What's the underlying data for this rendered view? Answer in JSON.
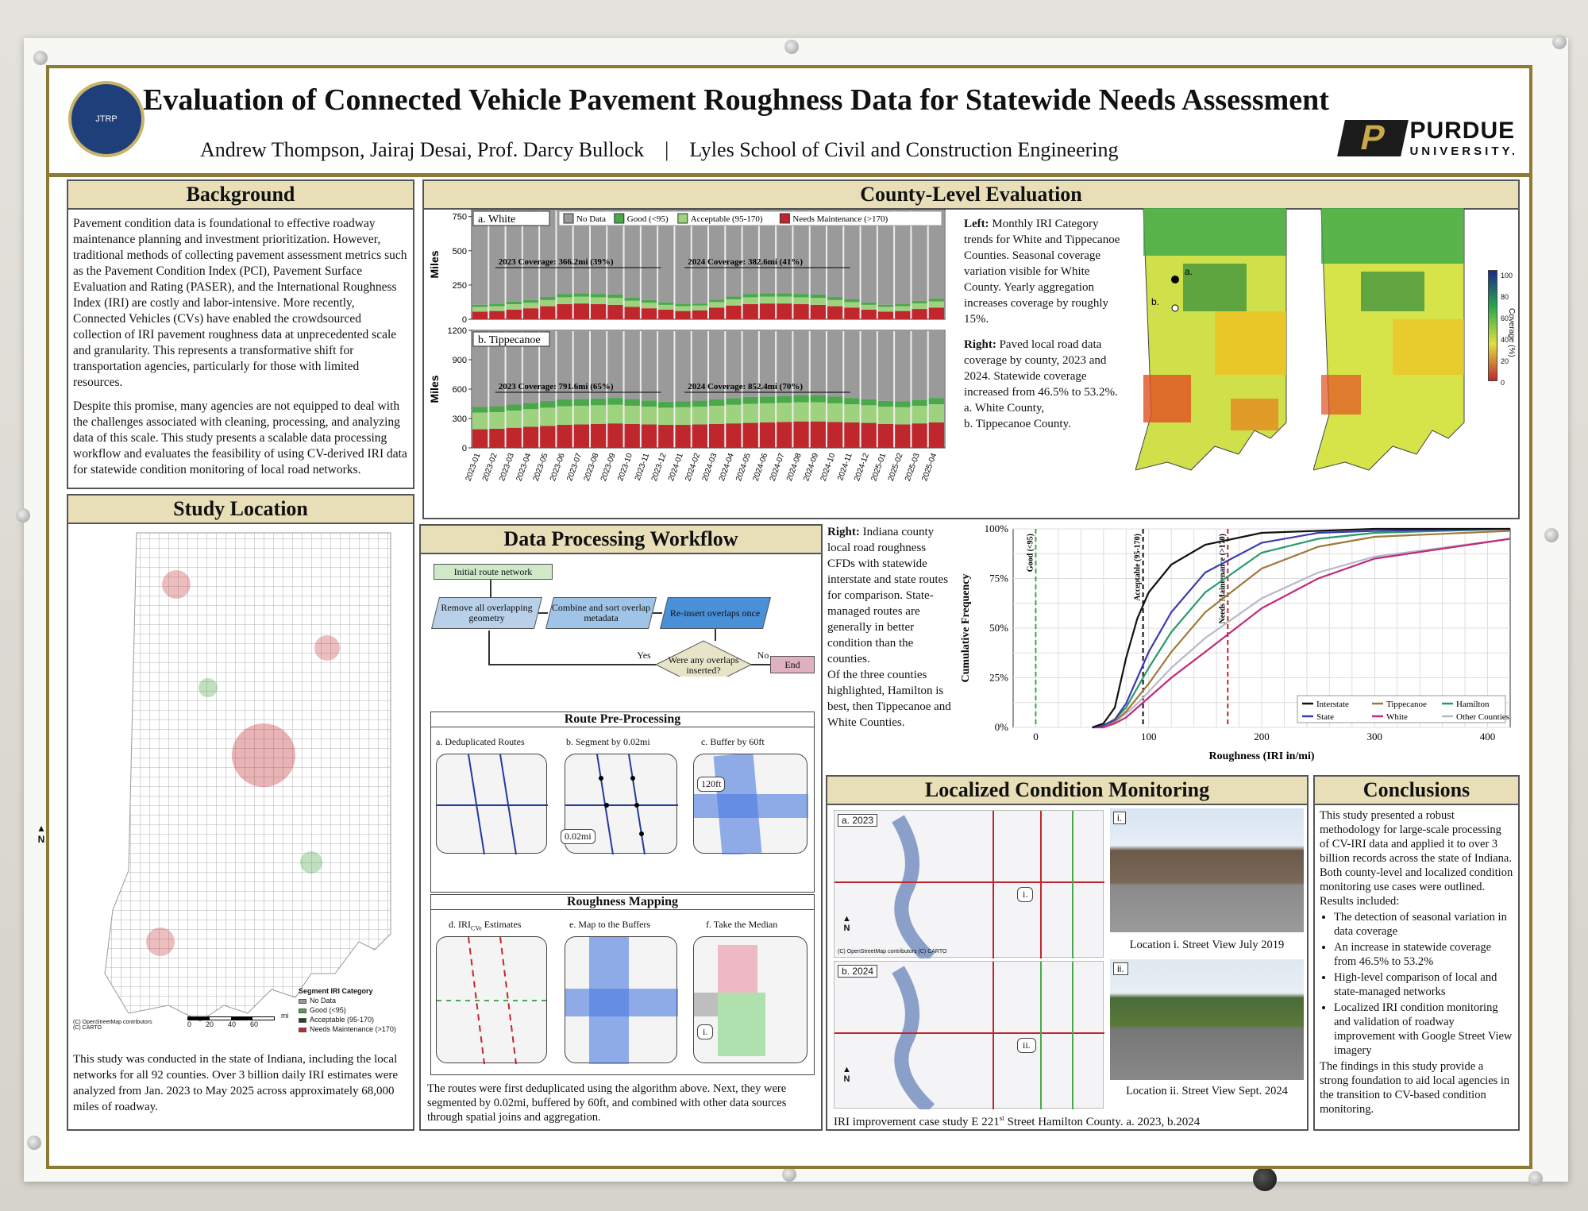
{
  "header": {
    "title": "Evaluation of Connected Vehicle Pavement Roughness Data for Statewide Needs Assessment",
    "authors": "Andrew Thompson, Jairaj Desai, Prof. Darcy Bullock",
    "separator": "|",
    "school": "Lyles School of Civil and Construction Engineering",
    "logo_letter": "P",
    "logo_word": "PURDUE",
    "logo_sub": "UNIVERSITY.",
    "seal_text": "JTRP"
  },
  "background": {
    "heading": "Background",
    "p1": "Pavement condition data is foundational to effective roadway maintenance planning and investment prioritization. However, traditional methods of collecting pavement assessment metrics such as the Pavement Condition Index (PCI), Pavement Surface Evaluation and Rating (PASER), and the International Roughness Index (IRI) are costly and labor-intensive. More recently, Connected Vehicles (CVs) have enabled the crowdsourced collection of IRI pavement roughness data at unprecedented scale and granularity. This represents a transformative shift for transportation agencies, particularly for those with limited resources.",
    "p2": "Despite this promise, many agencies are not equipped to deal with the challenges associated with cleaning, processing, and analyzing data of this scale. This study presents a scalable data processing workflow and evaluates the feasibility of using CV-derived IRI data for statewide condition monitoring of local road networks."
  },
  "study_location": {
    "heading": "Study Location",
    "north": "N",
    "legend_title": "Segment IRI Category",
    "legend": [
      "No Data",
      "Good (<95)",
      "Acceptable (95-170)",
      "Needs Maintenance (>170)"
    ],
    "scale_labels": [
      "0",
      "20",
      "40",
      "60"
    ],
    "scale_unit": "mi",
    "credit": "(C) OpenStreetMap contributors (C) CARTO",
    "caption": "This study was conducted in the state of Indiana, including the local networks for all 92 counties. Over 3 billion daily IRI estimates were analyzed from Jan. 2023 to May 2025 across approximately 68,000 miles of roadway."
  },
  "county_eval": {
    "heading": "County-Level Evaluation",
    "left_text_bold": "Left:",
    "left_text": "Monthly IRI Category trends for White and Tippecanoe Counties. Seasonal coverage variation visible for White County. Yearly aggregation increases coverage by roughly 15%.",
    "right_text_bold": "Right:",
    "right_text": "Paved local road data coverage by county, 2023 and 2024. Statewide coverage increased from 46.5% to 53.2%.",
    "right_a": "a. White County,",
    "right_b": "b. Tippecanoe County.",
    "map_label_a": "a.",
    "map_label_b": "b.",
    "colorbar_ticks": [
      "100",
      "80",
      "60",
      "40",
      "20",
      "0"
    ],
    "colorbar_label": "Coverage (%)"
  },
  "chart_data": [
    {
      "type": "bar",
      "title": "a. White",
      "ylabel": "Miles",
      "ylim": [
        0,
        800
      ],
      "yticks": [
        0,
        250,
        500,
        750
      ],
      "legend_placement": "top",
      "annotations": [
        "2023 Coverage:  366.2mi (39%)",
        "2024 Coverage:  382.6mi (41%)"
      ],
      "categories": [
        "2023-01",
        "2023-02",
        "2023-03",
        "2023-04",
        "2023-05",
        "2023-06",
        "2023-07",
        "2023-08",
        "2023-09",
        "2023-10",
        "2023-11",
        "2023-12",
        "2024-01",
        "2024-02",
        "2024-03",
        "2024-04",
        "2024-05",
        "2024-06",
        "2024-07",
        "2024-08",
        "2024-09",
        "2024-10",
        "2024-11",
        "2024-12",
        "2025-01",
        "2025-02",
        "2025-03",
        "2025-04"
      ],
      "series": [
        {
          "name": "Needs Maintenance (>170)",
          "color": "#c0272d",
          "values": [
            55,
            60,
            70,
            80,
            95,
            110,
            115,
            110,
            105,
            90,
            80,
            70,
            60,
            65,
            85,
            100,
            110,
            115,
            115,
            110,
            105,
            95,
            85,
            70,
            55,
            60,
            75,
            85
          ]
        },
        {
          "name": "Acceptable (95-170)",
          "color": "#9fd27f",
          "values": [
            35,
            35,
            40,
            40,
            45,
            50,
            50,
            50,
            50,
            45,
            40,
            35,
            35,
            35,
            40,
            45,
            50,
            50,
            50,
            50,
            50,
            45,
            40,
            35,
            35,
            35,
            40,
            45
          ]
        },
        {
          "name": "Good (<95)",
          "color": "#4aa84a",
          "values": [
            15,
            15,
            18,
            20,
            22,
            25,
            25,
            25,
            25,
            22,
            20,
            18,
            15,
            15,
            18,
            20,
            25,
            25,
            25,
            25,
            25,
            22,
            20,
            18,
            15,
            15,
            18,
            20
          ]
        },
        {
          "name": "No Data",
          "color": "#9a9a9a",
          "values": [
            695,
            690,
            672,
            660,
            638,
            615,
            610,
            615,
            620,
            643,
            660,
            677,
            690,
            685,
            657,
            635,
            615,
            610,
            610,
            615,
            620,
            638,
            655,
            677,
            695,
            690,
            667,
            650
          ]
        }
      ]
    },
    {
      "type": "bar",
      "title": "b. Tippecanoe",
      "ylabel": "Miles",
      "ylim": [
        0,
        1200
      ],
      "yticks": [
        0,
        300,
        600,
        900,
        1200
      ],
      "annotations": [
        "2023 Coverage:  791.6mi (65%)",
        "2024 Coverage:  852.4mi (70%)"
      ],
      "categories": [
        "2023-01",
        "2023-02",
        "2023-03",
        "2023-04",
        "2023-05",
        "2023-06",
        "2023-07",
        "2023-08",
        "2023-09",
        "2023-10",
        "2023-11",
        "2023-12",
        "2024-01",
        "2024-02",
        "2024-03",
        "2024-04",
        "2024-05",
        "2024-06",
        "2024-07",
        "2024-08",
        "2024-09",
        "2024-10",
        "2024-11",
        "2024-12",
        "2025-01",
        "2025-02",
        "2025-03",
        "2025-04"
      ],
      "series": [
        {
          "name": "Needs Maintenance (>170)",
          "color": "#c0272d",
          "values": [
            190,
            195,
            205,
            215,
            225,
            235,
            240,
            245,
            250,
            245,
            240,
            235,
            235,
            240,
            245,
            250,
            255,
            260,
            265,
            270,
            270,
            265,
            260,
            255,
            245,
            240,
            250,
            260
          ]
        },
        {
          "name": "Acceptable (95-170)",
          "color": "#9fd27f",
          "values": [
            170,
            170,
            175,
            180,
            185,
            190,
            190,
            190,
            190,
            185,
            180,
            175,
            180,
            180,
            185,
            190,
            195,
            195,
            195,
            195,
            195,
            190,
            185,
            180,
            175,
            175,
            180,
            185
          ]
        },
        {
          "name": "Good (<95)",
          "color": "#4aa84a",
          "values": [
            60,
            60,
            62,
            65,
            68,
            70,
            70,
            70,
            70,
            68,
            65,
            62,
            62,
            62,
            65,
            68,
            70,
            70,
            70,
            70,
            70,
            68,
            65,
            62,
            60,
            60,
            62,
            65
          ]
        },
        {
          "name": "No Data",
          "color": "#9a9a9a",
          "values": [
            780,
            775,
            758,
            740,
            722,
            705,
            700,
            695,
            690,
            702,
            715,
            728,
            723,
            718,
            705,
            692,
            680,
            675,
            670,
            665,
            665,
            677,
            690,
            703,
            720,
            725,
            708,
            690
          ]
        }
      ]
    },
    {
      "type": "line",
      "title": "",
      "xlabel": "Roughness (IRI in/mi)",
      "ylabel": "Cumulative Frequency",
      "xlim": [
        -20,
        420
      ],
      "ylim": [
        0,
        100
      ],
      "xticks": [
        0,
        100,
        200,
        300,
        400
      ],
      "yticks": [
        "0%",
        "25%",
        "50%",
        "75%",
        "100%"
      ],
      "grid": true,
      "legend_placement": "bottom-right",
      "thresholds": [
        {
          "x": 0,
          "label": "Good (<95)",
          "color": "#3aa84a"
        },
        {
          "x": 95,
          "label": "Acceptable (95-170)",
          "color": "#111"
        },
        {
          "x": 170,
          "label": "Needs Maintenance (>170)",
          "color": "#c0272d"
        }
      ],
      "series": [
        {
          "name": "Interstate",
          "color": "#111111",
          "x": [
            50,
            60,
            70,
            80,
            90,
            100,
            120,
            150,
            200,
            250,
            300,
            420
          ],
          "y": [
            0,
            2,
            10,
            35,
            55,
            68,
            82,
            92,
            98,
            99,
            100,
            100
          ]
        },
        {
          "name": "State",
          "color": "#3b3bb0",
          "x": [
            50,
            60,
            70,
            80,
            90,
            100,
            120,
            150,
            200,
            250,
            300,
            420
          ],
          "y": [
            0,
            1,
            4,
            12,
            25,
            38,
            58,
            78,
            93,
            98,
            99,
            100
          ]
        },
        {
          "name": "Tippecanoe",
          "color": "#a0793a",
          "x": [
            50,
            60,
            70,
            80,
            90,
            100,
            120,
            150,
            200,
            250,
            300,
            420
          ],
          "y": [
            0,
            1,
            3,
            8,
            15,
            22,
            38,
            58,
            80,
            91,
            96,
            99
          ]
        },
        {
          "name": "White",
          "color": "#c02a7a",
          "x": [
            50,
            60,
            70,
            80,
            90,
            100,
            120,
            150,
            200,
            250,
            300,
            420
          ],
          "y": [
            0,
            0,
            2,
            5,
            10,
            15,
            25,
            38,
            60,
            75,
            85,
            95
          ]
        },
        {
          "name": "Hamilton",
          "color": "#2a9a6a",
          "x": [
            50,
            60,
            70,
            80,
            90,
            100,
            120,
            150,
            200,
            250,
            300,
            420
          ],
          "y": [
            0,
            1,
            4,
            10,
            20,
            30,
            48,
            68,
            88,
            95,
            98,
            100
          ]
        },
        {
          "name": "Other Counties",
          "color": "#b8b8c8",
          "x": [
            50,
            60,
            70,
            80,
            90,
            100,
            120,
            150,
            200,
            250,
            300,
            420
          ],
          "y": [
            0,
            1,
            3,
            7,
            12,
            18,
            30,
            45,
            65,
            78,
            86,
            95
          ]
        }
      ]
    }
  ],
  "cfd_text": {
    "bold": "Right:",
    "text": "Indiana county local road roughness CFDs  with statewide interstate and state routes for comparison. State-managed routes are generally in better condition than the counties.",
    "text2": "Of the three counties highlighted, Hamilton is best, then Tippecanoe and White Counties."
  },
  "workflow": {
    "heading": "Data Processing Workflow",
    "step1": "Initial route network",
    "step1_num": "1.",
    "step2a": "Remove all overlapping geometry",
    "step2a_num": "2a.",
    "step2b": "Combine and sort overlap metadata",
    "step2b_num": "2b.",
    "step2c": "Re-insert overlaps once",
    "step2c_num": "2c.",
    "step3": "Were any overlaps inserted?",
    "step3_num": "3.",
    "yes": "Yes",
    "no": "No",
    "step4": "End",
    "step4_num": "4.",
    "rpp_heading": "Route Pre-Processing",
    "rpp_a": "a. Deduplicated Routes",
    "rpp_b": "b. Segment by 0.02mi",
    "rpp_c": "c. Buffer by 60ft",
    "seg_label": "0.02mi",
    "buf_label": "120ft",
    "rm_heading": "Roughness Mapping",
    "rm_d": "d. IRI",
    "rm_d_sub": "CVe",
    "rm_d_tail": " Estimates",
    "rm_e": "e. Map to the Buffers",
    "rm_f": "f. Take the Median",
    "rm_f_label": "i.",
    "caption": "The routes were first deduplicated using the algorithm above. Next, they were segmented by 0.02mi, buffered by 60ft, and combined with other data sources through spatial joins and aggregation."
  },
  "localized": {
    "heading": "Localized Condition Monitoring",
    "a_label": "a. 2023",
    "b_label": "b. 2024",
    "callout_i": "i.",
    "callout_ii": "ii.",
    "photo_i_tag": "i.",
    "photo_ii_tag": "ii.",
    "photo_i_caption": "Location i. Street View July 2019",
    "photo_ii_caption": "Location ii. Street View Sept. 2024",
    "north": "N",
    "credit": "(C) OpenStreetMap contributors (C) CARTO",
    "caption_pre": "IRI improvement case study E 221",
    "caption_sup": "st",
    "caption_post": " Street Hamilton County.  a. 2023,  b.2024"
  },
  "conclusions": {
    "heading": "Conclusions",
    "intro": "This study presented a robust methodology for large-scale processing of CV-IRI data and applied it to over 3 billion records across the state of Indiana. Both county-level and localized condition monitoring use cases were outlined. Results included:",
    "bullets": [
      "The detection of seasonal variation in data coverage",
      "An increase in statewide coverage from 46.5% to 53.2%",
      "High-level comparison of local and state-managed networks",
      "Localized IRI condition monitoring and validation of roadway improvement with Google Street View imagery"
    ],
    "closing": "The findings in this study provide a strong foundation to aid local agencies in the transition to CV-based condition monitoring."
  }
}
